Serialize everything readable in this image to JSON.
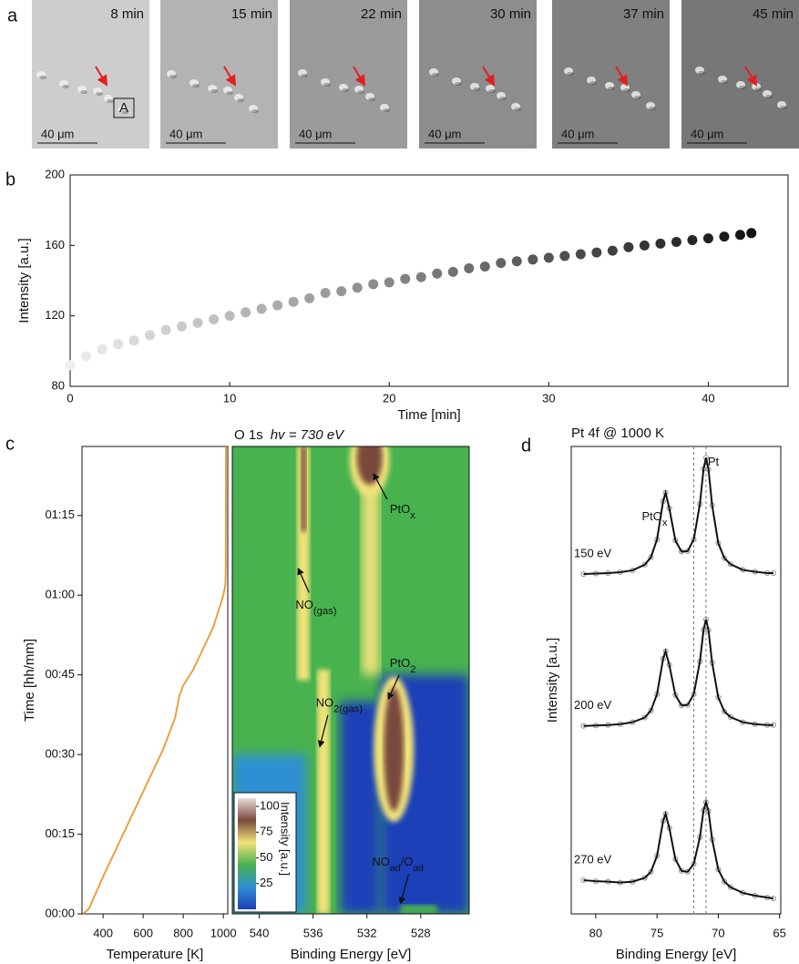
{
  "panel_labels": [
    "a",
    "b",
    "c",
    "d"
  ],
  "micrographs": [
    {
      "time": "8 min",
      "scale_bar": "40 μm",
      "tone": "#cdcdcd"
    },
    {
      "time": "15 min",
      "scale_bar": "40 μm",
      "tone": "#b3b3b3"
    },
    {
      "time": "22 min",
      "scale_bar": "40 μm",
      "tone": "#9b9b9b"
    },
    {
      "time": "30 min",
      "scale_bar": "40 μm",
      "tone": "#8d8d8d"
    },
    {
      "time": "37 min",
      "scale_bar": "40 μm",
      "tone": "#808080"
    },
    {
      "time": "45 min",
      "scale_bar": "40 μm",
      "tone": "#777777"
    }
  ],
  "micrograph_marker": "A",
  "chart_data": [
    {
      "type": "scatter",
      "xlabel": "Time [min]",
      "ylabel": "Intensity [a.u.]",
      "x": [
        0,
        1,
        2,
        3,
        4,
        5,
        6,
        7,
        8,
        9,
        10,
        11,
        12,
        13,
        14,
        15,
        16,
        17,
        18,
        19,
        20,
        21,
        22,
        23,
        24,
        25,
        26,
        27,
        28,
        29,
        30,
        31,
        32,
        33,
        34,
        35,
        36,
        37,
        38,
        39,
        40,
        41,
        42,
        42.7
      ],
      "values": [
        92,
        97,
        101,
        104,
        106,
        109,
        112,
        114,
        116,
        118,
        120,
        122,
        124,
        126,
        128,
        130,
        133,
        134,
        136,
        138,
        139,
        141,
        142,
        144,
        145,
        147,
        148,
        150,
        151,
        152,
        153,
        154,
        155,
        156,
        157,
        159,
        160,
        161,
        162,
        163,
        164,
        165,
        166,
        167
      ],
      "color_range": [
        "#eeeeee",
        "#111111"
      ],
      "xlim": [
        0,
        45
      ],
      "ylim": [
        80,
        200
      ],
      "xticks": [
        0,
        10,
        20,
        30,
        40
      ],
      "yticks": [
        80,
        120,
        160,
        200
      ]
    },
    {
      "type": "line",
      "xlabel": "Temperature [K]",
      "ylabel": "Time  [hh/mm]",
      "color": "#f0962c",
      "x": [
        300,
        330,
        400,
        500,
        600,
        700,
        760,
        780,
        800,
        850,
        900,
        950,
        1000,
        1010,
        1012,
        1013
      ],
      "values": [
        0,
        1,
        7,
        15,
        23,
        31,
        37,
        41,
        43,
        46,
        50,
        54,
        60,
        62,
        65,
        88
      ],
      "xlim": [
        295,
        1022
      ],
      "ylim": [
        0,
        88
      ],
      "xticks": [
        400,
        600,
        800,
        1000
      ],
      "yticks": [
        {
          "value": 0,
          "label": "00:00"
        },
        {
          "value": 15,
          "label": "00:15"
        },
        {
          "value": 30,
          "label": "00:30"
        },
        {
          "value": 45,
          "label": "00:45"
        },
        {
          "value": 60,
          "label": "01:00"
        },
        {
          "value": 75,
          "label": "01:15"
        }
      ]
    },
    {
      "type": "heatmap",
      "title": "O 1s",
      "title_energy": "hv = 730 eV",
      "xlabel": "Binding Energy [eV]",
      "xlim": [
        542,
        524.4
      ],
      "xticks": [
        540,
        536,
        532,
        528
      ],
      "ylim": [
        0,
        88
      ],
      "colormap": [
        "#1f3fb8",
        "#2f8fd2",
        "#47b24e",
        "#f0e27a",
        "#7a4a3c",
        "#e9dcd8"
      ],
      "colorbar": {
        "label": "Intensity [a.u.]",
        "lim": [
          0,
          108
        ],
        "ticks": [
          100,
          75,
          50,
          25
        ]
      },
      "annotations": [
        {
          "parts": [
            {
              "t": "PtO",
              "sub": "x"
            }
          ]
        },
        {
          "parts": [
            {
              "t": "NO",
              "sub": "(gas)"
            }
          ]
        },
        {
          "parts": [
            {
              "t": "PtO",
              "sub": "2"
            }
          ]
        },
        {
          "parts": [
            {
              "t": "NO",
              "sub": "2(gas)"
            }
          ]
        },
        {
          "parts": [
            {
              "t": "NO",
              "sub": "ad"
            },
            {
              "t": "/O",
              "sub": "ad"
            }
          ]
        }
      ]
    },
    {
      "type": "line",
      "title": "Pt 4f @ 1000 K",
      "xlabel": "Binding Energy [eV]",
      "ylabel": "Intensity [a.u.]",
      "xlim": [
        82,
        64.9
      ],
      "xticks": [
        80,
        75,
        70,
        65
      ],
      "ylim": [
        0,
        100
      ],
      "reference_lines": [
        72,
        71
      ],
      "annotations": [
        {
          "parts": [
            {
              "t": "PtO",
              "sub": "x"
            }
          ]
        },
        {
          "parts": [
            {
              "t": "Pt"
            }
          ]
        }
      ],
      "x": [
        81,
        80,
        79,
        78,
        77,
        76,
        75.5,
        75,
        74.5,
        74.3,
        74,
        73.5,
        73,
        72.5,
        72,
        71.5,
        71.2,
        71,
        70.8,
        70.5,
        70,
        69.5,
        69,
        68,
        67,
        66,
        65.5
      ],
      "series": [
        {
          "name": "150 eV",
          "color": "#111111",
          "values": [
            72.7,
            72.8,
            72.9,
            73.1,
            73.5,
            74.7,
            76.3,
            80.1,
            88.3,
            90.1,
            86.8,
            79.9,
            77.5,
            77.6,
            80.1,
            87.7,
            95.2,
            97.6,
            95.1,
            87.4,
            79.3,
            76.1,
            74.8,
            73.6,
            73.2,
            72.9,
            72.9
          ]
        },
        {
          "name": "200 eV",
          "color": "#111111",
          "values": [
            40.2,
            40.3,
            40.4,
            40.6,
            41.0,
            42.0,
            43.5,
            47.0,
            54.6,
            56.2,
            53.3,
            46.8,
            44.6,
            44.7,
            47.0,
            54.0,
            60.8,
            63.0,
            60.7,
            53.7,
            46.3,
            43.3,
            42.1,
            41.0,
            40.6,
            40.4,
            40.4
          ]
        },
        {
          "name": "270 eV",
          "color": "#111111",
          "values": [
            7.2,
            7.0,
            6.9,
            6.7,
            6.9,
            7.7,
            9.0,
            12.4,
            19.9,
            21.4,
            18.4,
            11.7,
            9.2,
            9.0,
            10.7,
            16.4,
            22.2,
            23.9,
            22.0,
            15.9,
            9.5,
            6.9,
            5.7,
            4.5,
            3.9,
            3.5,
            3.3
          ]
        }
      ]
    }
  ]
}
